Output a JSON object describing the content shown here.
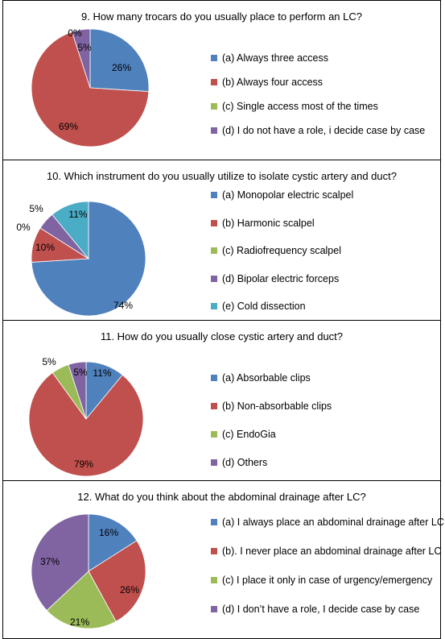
{
  "chart_data": [
    {
      "type": "pie",
      "title": "9. How many trocars do you usually place to perform an LC?",
      "slices": [
        {
          "label": "(a) Always three access",
          "value": 26,
          "value_label": "26%",
          "color": "#4f81bd"
        },
        {
          "label": "(b) Always four access",
          "value": 69,
          "value_label": "69%",
          "color": "#c0504d"
        },
        {
          "label": "(c) Single access most of the times",
          "value": 0,
          "value_label": "0%",
          "color": "#9bbb59"
        },
        {
          "label": "(d) I do not have a role, i decide case by case",
          "value": 5,
          "value_label": "5%",
          "color": "#8064a2"
        }
      ],
      "legend_position": "right"
    },
    {
      "type": "pie",
      "title": "10. Which instrument do you usually utilize to isolate cystic artery and duct?",
      "slices": [
        {
          "label": "(a) Monopolar electric scalpel",
          "value": 74,
          "value_label": "74%",
          "color": "#4f81bd"
        },
        {
          "label": "(b) Harmonic scalpel",
          "value": 10,
          "value_label": "10%",
          "color": "#c0504d"
        },
        {
          "label": "(c) Radiofrequency scalpel",
          "value": 0,
          "value_label": "0%",
          "color": "#9bbb59"
        },
        {
          "label": "(d) Bipolar electric forceps",
          "value": 5,
          "value_label": "5%",
          "color": "#8064a2"
        },
        {
          "label": "(e) Cold dissection",
          "value": 11,
          "value_label": "11%",
          "color": "#4bacc6"
        }
      ],
      "legend_position": "right"
    },
    {
      "type": "pie",
      "title": "11. How do you usually close cystic artery and duct?",
      "slices": [
        {
          "label": "(a) Absorbable clips",
          "value": 11,
          "value_label": "11%",
          "color": "#4f81bd"
        },
        {
          "label": "(b) Non-absorbable clips",
          "value": 79,
          "value_label": "79%",
          "color": "#c0504d"
        },
        {
          "label": "(c) EndoGia",
          "value": 5,
          "value_label": "5%",
          "color": "#9bbb59"
        },
        {
          "label": "(d) Others",
          "value": 5,
          "value_label": "5%",
          "color": "#8064a2"
        }
      ],
      "legend_position": "right"
    },
    {
      "type": "pie",
      "title": "12. What do you think about the abdominal drainage after LC?",
      "slices": [
        {
          "label": "(a) I always place an abdominal drainage after LC",
          "value": 16,
          "value_label": "16%",
          "color": "#4f81bd"
        },
        {
          "label": "(b). I never place an abdominal drainage after LC",
          "value": 26,
          "value_label": "26%",
          "color": "#c0504d"
        },
        {
          "label": "(c) I place it only in case of urgency/emergency",
          "value": 21,
          "value_label": "21%",
          "color": "#9bbb59"
        },
        {
          "label": "(d) I don’t have a role, I decide case by case",
          "value": 37,
          "value_label": "37%",
          "color": "#8064a2"
        }
      ],
      "legend_position": "right"
    }
  ]
}
